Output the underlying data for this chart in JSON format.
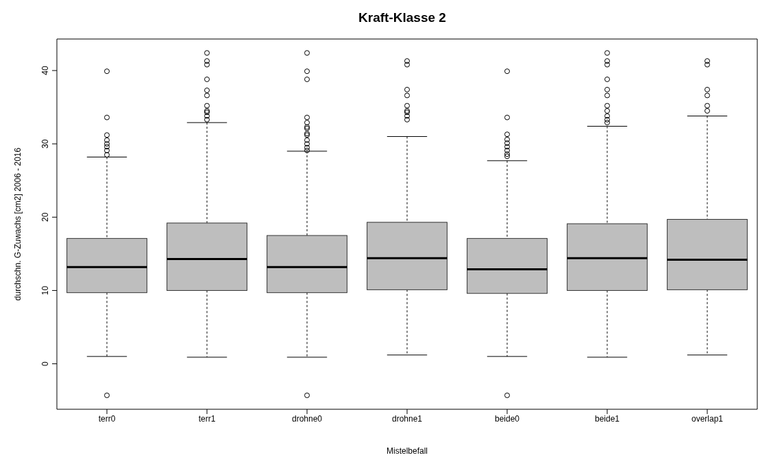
{
  "chart_data": {
    "type": "box",
    "title": "Kraft-Klasse 2",
    "xlabel": "Mistelbefall",
    "ylabel": "durchschn. G-Zuwachs [cm2] 2006 - 2016",
    "categories": [
      "terr0",
      "terr1",
      "drohne0",
      "drohne1",
      "beide0",
      "beide1",
      "overlap1"
    ],
    "color": "#bebebe",
    "boxes": [
      {
        "low": 1.0,
        "q1": 9.7,
        "median": 13.2,
        "q3": 17.1,
        "high": 28.2,
        "outliers": [
          39.9,
          33.6,
          31.2,
          30.5,
          30.0,
          29.6,
          29.1,
          28.5,
          -4.3
        ]
      },
      {
        "low": 0.9,
        "q1": 10.0,
        "median": 14.3,
        "q3": 19.2,
        "high": 32.9,
        "outliers": [
          42.4,
          41.3,
          40.8,
          38.8,
          37.3,
          36.6,
          35.2,
          34.5,
          34.3,
          33.8,
          33.3
        ]
      },
      {
        "low": 0.9,
        "q1": 9.7,
        "median": 13.2,
        "q3": 17.5,
        "high": 29.0,
        "outliers": [
          42.4,
          39.9,
          38.8,
          33.6,
          32.9,
          32.3,
          32.1,
          31.4,
          31.2,
          30.5,
          30.0,
          29.5,
          29.1,
          -4.3
        ]
      },
      {
        "low": 1.2,
        "q1": 10.1,
        "median": 14.4,
        "q3": 19.3,
        "high": 31.0,
        "outliers": [
          41.3,
          40.8,
          37.4,
          36.6,
          35.2,
          34.5,
          34.3,
          33.8,
          33.3
        ]
      },
      {
        "low": 1.0,
        "q1": 9.6,
        "median": 12.9,
        "q3": 17.1,
        "high": 27.7,
        "outliers": [
          39.9,
          33.6,
          31.3,
          30.6,
          30.1,
          29.6,
          29.1,
          28.6,
          28.3,
          -4.3
        ]
      },
      {
        "low": 0.9,
        "q1": 10.0,
        "median": 14.4,
        "q3": 19.1,
        "high": 32.4,
        "outliers": [
          42.4,
          41.3,
          40.8,
          38.8,
          37.4,
          36.6,
          35.2,
          34.5,
          33.8,
          33.3,
          32.9
        ]
      },
      {
        "low": 1.2,
        "q1": 10.1,
        "median": 14.2,
        "q3": 19.7,
        "high": 33.8,
        "outliers": [
          41.3,
          40.8,
          37.4,
          36.6,
          35.2,
          34.5
        ]
      }
    ],
    "ylim": [
      -6.2,
      44.3
    ],
    "yticks": [
      0,
      10,
      20,
      30,
      40
    ],
    "grid": false,
    "legend": false
  }
}
